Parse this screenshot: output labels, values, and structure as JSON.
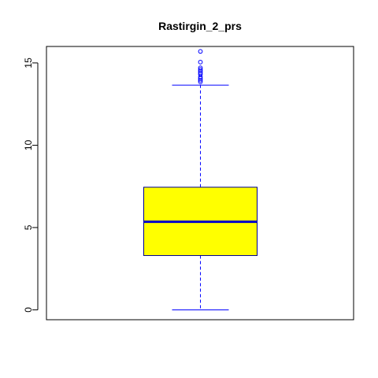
{
  "chart_data": {
    "type": "boxplot",
    "title": "Rastirgin_2_prs",
    "xlabel": "",
    "ylabel": "",
    "ylim": [
      -0.6,
      16.0
    ],
    "y_ticks": [
      0,
      5,
      10,
      15
    ],
    "y_tick_labels": [
      "0",
      "5",
      "10",
      "15"
    ],
    "grid": false,
    "box": {
      "whisker_low": 0.0,
      "q1": 3.3,
      "median": 5.35,
      "q3": 7.45,
      "whisker_high": 13.65,
      "outliers": [
        13.85,
        13.95,
        14.05,
        14.15,
        14.3,
        14.4,
        14.5,
        14.6,
        14.7,
        15.05,
        15.7
      ]
    },
    "colors": {
      "box_fill": "#ffff00",
      "box_border": "#00008b",
      "median": "#0000cd",
      "whisker": "#0000ff",
      "outlier": "#0000ff",
      "frame": "#000000"
    }
  }
}
